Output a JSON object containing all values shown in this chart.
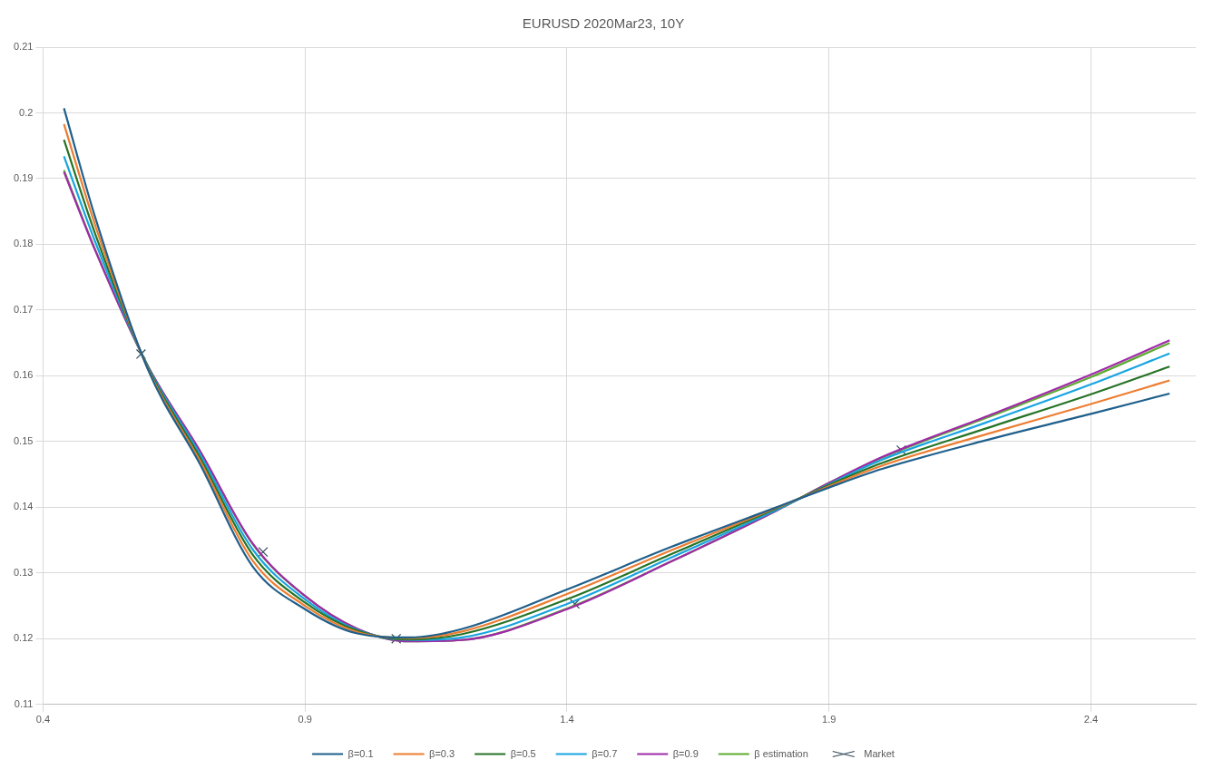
{
  "chart_data": {
    "type": "line",
    "title": "EURUSD 2020Mar23, 10Y",
    "x": [
      0.44,
      0.5,
      0.6,
      0.7,
      0.8,
      0.9,
      1.0,
      1.1,
      1.2,
      1.4,
      1.6,
      1.8,
      1.9,
      2.0,
      2.2,
      2.4,
      2.55
    ],
    "series": [
      {
        "name": "β=0.1",
        "color": "#1f5f8b",
        "values": [
          0.2007,
          0.184,
          0.161,
          0.1465,
          0.131,
          0.1245,
          0.1208,
          0.1202,
          0.1215,
          0.1275,
          0.134,
          0.14,
          0.143,
          0.1458,
          0.1502,
          0.1542,
          0.1573
        ]
      },
      {
        "name": "β=0.3",
        "color": "#ed7d31",
        "values": [
          0.1983,
          0.1828,
          0.1611,
          0.147,
          0.1319,
          0.125,
          0.121,
          0.1201,
          0.1211,
          0.1268,
          0.1335,
          0.1399,
          0.1432,
          0.1463,
          0.1511,
          0.1557,
          0.1593
        ]
      },
      {
        "name": "β=0.5",
        "color": "#267326",
        "values": [
          0.1959,
          0.1815,
          0.1613,
          0.1475,
          0.1328,
          0.1255,
          0.1212,
          0.1199,
          0.1207,
          0.126,
          0.1329,
          0.1398,
          0.1434,
          0.1467,
          0.152,
          0.1572,
          0.1614
        ]
      },
      {
        "name": "β=0.7",
        "color": "#18a4e0",
        "values": [
          0.1934,
          0.1803,
          0.1614,
          0.148,
          0.1336,
          0.126,
          0.1213,
          0.1198,
          0.1202,
          0.1253,
          0.1324,
          0.1396,
          0.1435,
          0.1472,
          0.1529,
          0.1587,
          0.1634
        ]
      },
      {
        "name": "β=0.9",
        "color": "#a02aa8",
        "values": [
          0.191,
          0.179,
          0.1615,
          0.1485,
          0.1345,
          0.1265,
          0.1215,
          0.1196,
          0.1198,
          0.1245,
          0.1318,
          0.1395,
          0.1437,
          0.1476,
          0.1538,
          0.1602,
          0.1654
        ]
      },
      {
        "name": "β estimation",
        "color": "#5eab32",
        "values": [
          0.1913,
          0.1791,
          0.1615,
          0.1485,
          0.1344,
          0.1265,
          0.1215,
          0.1196,
          0.1198,
          0.1246,
          0.1318,
          0.1395,
          0.1437,
          0.1475,
          0.1536,
          0.1598,
          0.165
        ]
      },
      {
        "name": "Market",
        "type": "scatter",
        "marker": "cross",
        "color": "#2f4858",
        "x": [
          0.587,
          0.82,
          1.074,
          1.415,
          2.038
        ],
        "values": [
          0.1633,
          0.1332,
          0.12,
          0.1253,
          0.1487
        ]
      }
    ],
    "xlim": [
      0.4,
      2.6
    ],
    "xticks": [
      0.4,
      0.9,
      1.4,
      1.9,
      2.4
    ],
    "ylim": [
      0.11,
      0.21
    ],
    "yticks": [
      0.11,
      0.12,
      0.13,
      0.14,
      0.15,
      0.16,
      0.17,
      0.18,
      0.19,
      0.2,
      0.21
    ],
    "grid": true,
    "legend": "bottom",
    "marker": "none"
  }
}
